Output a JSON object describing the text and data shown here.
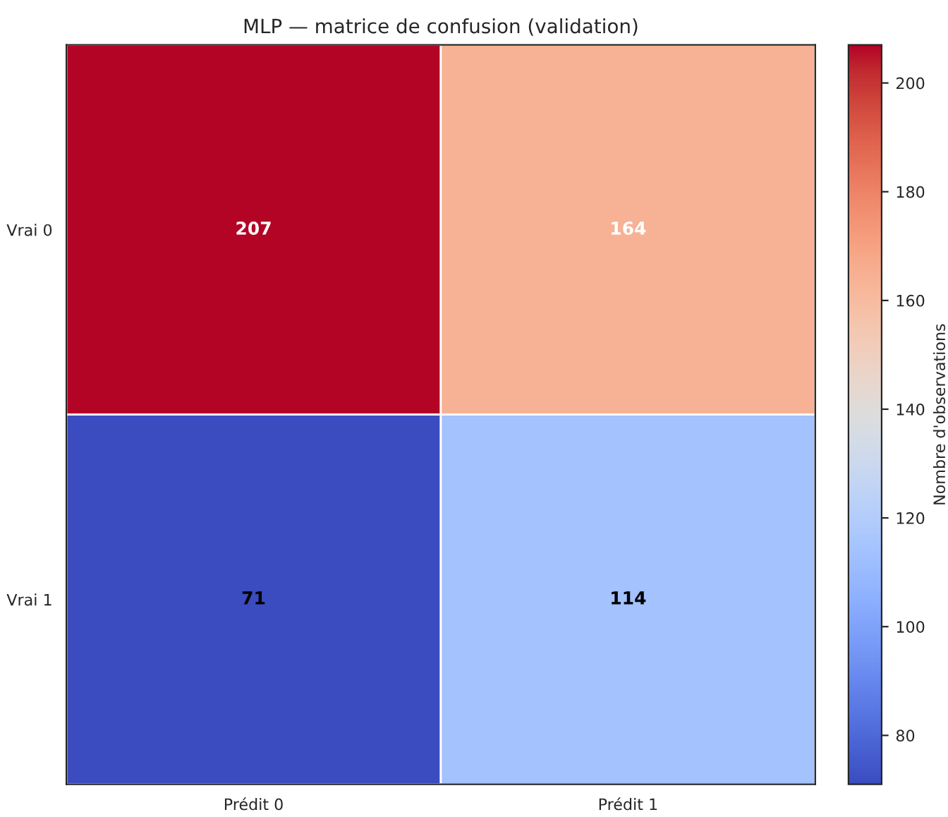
{
  "chart_data": {
    "type": "heatmap",
    "title": "MLP — matrice de confusion (validation)",
    "categories": [
      "Prédit 0",
      "Prédit 1"
    ],
    "y_categories": [
      "Vrai 0",
      "Vrai 1"
    ],
    "cells": [
      [
        207,
        164
      ],
      [
        71,
        114
      ]
    ],
    "clim": [
      71,
      207
    ],
    "cticks": [
      80,
      100,
      120,
      140,
      160,
      180,
      200
    ],
    "clabel": "Nombre d'observations",
    "data_labels": true
  }
}
